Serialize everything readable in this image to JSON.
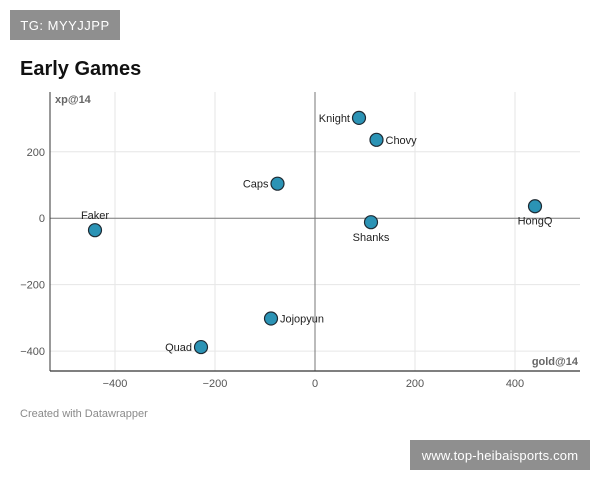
{
  "watermark_top": "TG: MYYJJPP",
  "watermark_bottom": "www.top-heibaisports.com",
  "chart_data": {
    "type": "scatter",
    "title": "Early Games",
    "xlabel": "gold@14",
    "ylabel": "xp@14",
    "credit": "Created with Datawrapper",
    "xlim": [
      -530,
      530
    ],
    "ylim": [
      -460,
      380
    ],
    "xticks": [
      -400,
      -200,
      0,
      200,
      400
    ],
    "yticks": [
      200,
      0,
      -200,
      -400
    ],
    "grid": true,
    "point_color": "#2b93b5",
    "points": [
      {
        "name": "Knight",
        "x": 88,
        "y": 302
      },
      {
        "name": "Chovy",
        "x": 123,
        "y": 236
      },
      {
        "name": "Caps",
        "x": -75,
        "y": 104
      },
      {
        "name": "HongQ",
        "x": 440,
        "y": 36
      },
      {
        "name": "Shanks",
        "x": 112,
        "y": -12
      },
      {
        "name": "Faker",
        "x": -440,
        "y": -36
      },
      {
        "name": "Jojopyun",
        "x": -88,
        "y": -302
      },
      {
        "name": "Quad",
        "x": -228,
        "y": -388
      }
    ]
  }
}
